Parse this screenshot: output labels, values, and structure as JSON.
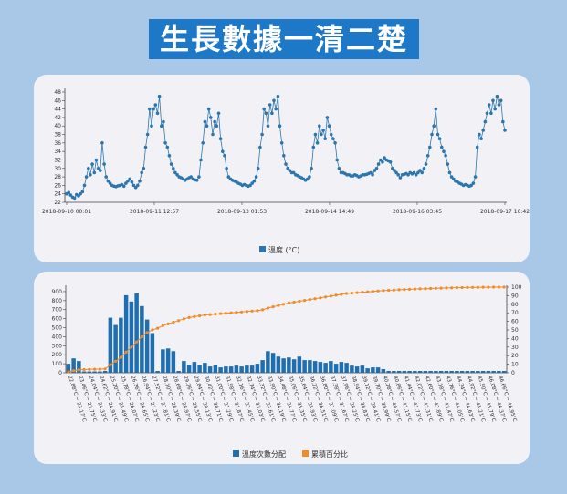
{
  "title": "生長數據一清二楚",
  "colors": {
    "bar": "#1f6eb0",
    "line": "#f08c28",
    "temp": "#2d76ad",
    "background": "#a9c8e8",
    "panel": "#f1f1f6"
  },
  "chart_data": [
    {
      "type": "line",
      "x_ticks": [
        "2018-09-10 00:01",
        "2018-09-11 12:57",
        "2018-09-13 01:53",
        "2018-09-14 14:49",
        "2018-09-16 03:45",
        "2018-09-17 16:42"
      ],
      "y_ticks": [
        22,
        24,
        26,
        28,
        30,
        32,
        34,
        36,
        38,
        40,
        42,
        44,
        46,
        48
      ],
      "ylim": [
        22,
        48
      ],
      "legend": "溫度 (°C)",
      "legend_position": "bottom",
      "values": [
        24,
        24.3,
        23.7,
        23.2,
        23,
        23.8,
        23.5,
        24,
        24.5,
        26,
        28,
        30,
        28.5,
        31,
        29,
        32,
        30,
        29.5,
        36,
        31,
        28,
        27,
        26.5,
        26,
        25.8,
        25.7,
        25.9,
        26,
        26.2,
        25.8,
        26.5,
        27,
        27.5,
        26.8,
        26,
        25.5,
        26,
        27,
        29,
        30,
        35,
        38,
        44,
        40,
        44,
        45,
        43,
        47,
        40,
        41,
        36,
        35,
        33,
        31,
        30,
        29,
        28.5,
        28,
        27.8,
        27.5,
        27.2,
        27.5,
        27.8,
        28,
        27.5,
        27.3,
        27.2,
        28,
        32,
        36,
        41,
        40,
        44,
        42,
        38,
        41,
        40,
        43,
        37,
        34,
        33,
        30,
        28,
        27.5,
        27.2,
        27,
        26.8,
        26.5,
        26.3,
        26,
        26.2,
        26,
        25.8,
        26,
        26.5,
        27,
        28,
        30,
        35,
        38,
        44,
        43,
        40,
        45,
        43,
        46,
        44,
        47,
        40,
        36,
        33,
        31,
        30,
        29.5,
        29,
        29,
        28.5,
        28.3,
        28,
        27.8,
        27.5,
        27.2,
        27.5,
        28,
        30,
        35,
        38,
        36,
        40,
        38,
        39,
        37,
        42,
        40,
        38,
        37,
        36,
        32,
        30,
        29,
        29,
        28.8,
        28.5,
        28.5,
        28.2,
        28.2,
        28.5,
        28.3,
        28,
        28.2,
        28.5,
        28.5,
        28.6,
        28.8,
        29,
        28.5,
        29.5,
        30,
        31,
        32,
        31.5,
        32.5,
        32,
        31.8,
        31.5,
        30,
        29.5,
        29,
        28.5,
        27.8,
        28.5,
        28.6,
        28.8,
        28.5,
        29,
        28.7,
        29,
        28.5,
        29,
        29.5,
        29,
        30,
        31,
        33,
        35,
        38,
        40,
        44,
        38,
        37,
        35,
        34,
        33,
        31,
        29,
        28,
        27.5,
        27,
        26.8,
        26.5,
        26.3,
        26,
        26.2,
        26,
        25.8,
        26,
        26.5,
        28,
        35,
        38,
        37,
        39,
        41,
        43,
        45,
        43,
        46,
        44,
        47,
        45,
        46,
        41,
        39
      ]
    },
    {
      "type": "bar",
      "categories": [
        "22.88°C ~ 23.17°C",
        "23.17°C ~ 23.46°C",
        "23.46°C ~ 23.75°C",
        "23.75°C ~ 24.04°C",
        "24.04°C ~ 24.33°C",
        "24.33°C ~ 24.62°C",
        "24.62°C ~ 24.91°C",
        "24.91°C ~ 25.20°C",
        "25.20°C ~ 25.49°C",
        "25.49°C ~ 25.78°C",
        "25.78°C ~ 26.07°C",
        "26.07°C ~ 26.36°C",
        "26.36°C ~ 26.65°C",
        "26.65°C ~ 26.94°C",
        "26.94°C ~ 27.23°C",
        "27.23°C ~ 27.52°C",
        "27.52°C ~ 27.81°C",
        "27.81°C ~ 28.10°C",
        "28.10°C ~ 28.39°C",
        "28.39°C ~ 28.68°C",
        "28.68°C ~ 28.97°C",
        "28.97°C ~ 29.26°C",
        "29.26°C ~ 29.55°C",
        "29.55°C ~ 29.84°C",
        "29.84°C ~ 30.13°C",
        "30.13°C ~ 30.42°C",
        "30.42°C ~ 30.71°C",
        "30.71°C ~ 31.00°C",
        "31.00°C ~ 31.29°C",
        "31.29°C ~ 31.58°C",
        "31.58°C ~ 31.87°C",
        "31.87°C ~ 32.16°C",
        "32.16°C ~ 32.45°C",
        "32.45°C ~ 32.74°C",
        "32.74°C ~ 33.03°C",
        "33.03°C ~ 33.32°C",
        "33.32°C ~ 33.61°C",
        "33.61°C ~ 33.90°C",
        "33.90°C ~ 34.19°C",
        "34.19°C ~ 34.48°C",
        "34.48°C ~ 34.77°C",
        "34.77°C ~ 35.06°C",
        "35.06°C ~ 35.35°C",
        "35.35°C ~ 35.64°C",
        "35.64°C ~ 35.93°C",
        "35.93°C ~ 36.22°C",
        "36.22°C ~ 36.51°C",
        "36.51°C ~ 36.80°C",
        "36.80°C ~ 37.09°C",
        "37.09°C ~ 37.38°C",
        "37.38°C ~ 37.67°C",
        "37.67°C ~ 37.96°C",
        "37.96°C ~ 38.25°C",
        "38.25°C ~ 38.54°C",
        "38.54°C ~ 38.83°C",
        "38.83°C ~ 39.12°C",
        "39.12°C ~ 39.41°C",
        "39.41°C ~ 39.70°C",
        "39.70°C ~ 39.99°C",
        "39.99°C ~ 40.28°C",
        "40.28°C ~ 40.57°C",
        "40.57°C ~ 40.86°C",
        "40.86°C ~ 41.15°C",
        "41.15°C ~ 41.44°C",
        "41.44°C ~ 41.73°C",
        "41.73°C ~ 42.02°C",
        "42.02°C ~ 42.31°C",
        "42.31°C ~ 42.60°C",
        "42.60°C ~ 42.89°C",
        "42.89°C ~ 43.18°C",
        "43.18°C ~ 43.47°C",
        "43.47°C ~ 43.76°C",
        "43.76°C ~ 44.05°C",
        "44.05°C ~ 44.34°C",
        "44.34°C ~ 44.63°C",
        "44.63°C ~ 44.92°C",
        "44.92°C ~ 45.21°C",
        "45.21°C ~ 45.50°C",
        "45.50°C ~ 45.79°C",
        "45.79°C ~ 46.08°C",
        "46.08°C ~ 46.37°C",
        "46.37°C ~ 46.66°C",
        "46.66°C ~ 46.95°C",
        "46.95°C ~ 47.24°C"
      ],
      "label_indices": [
        0,
        2,
        4,
        6,
        8,
        10,
        12,
        14,
        16,
        18,
        20,
        22,
        24,
        26,
        28,
        30,
        32,
        34,
        36,
        38,
        40,
        42,
        44,
        46,
        48,
        50,
        52,
        54,
        56,
        58,
        60,
        62,
        64,
        66,
        68,
        70,
        72,
        74,
        76,
        78,
        80,
        82
      ],
      "visible_labels": [
        "22.88°C ~ 23.17°C",
        "23.46°C ~ 23.75°C",
        "24.04°C ~ 24.33°C",
        "24.62°C ~ 24.91°C",
        "25.20°C ~ 25.49°C",
        "25.78°C ~ 26.07°C",
        "26.36°C ~ 26.65°C",
        "26.94°C ~ 27.23°C",
        "27.52°C ~ 27.81°C",
        "28.10°C ~ 28.39°C",
        "28.68°C ~ 28.97°C",
        "29.26°C ~ 29.55°C",
        "29.84°C ~ 30.13°C",
        "30.42°C ~ 30.71°C",
        "31.00°C ~ 31.29°C",
        "31.58°C ~ 31.87°C",
        "32.16°C ~ 32.45°C",
        "32.74°C ~ 33.03°C",
        "33.32°C ~ 33.61°C",
        "33.90°C ~ 34.19°C",
        "34.48°C ~ 34.77°C",
        "35.06°C ~ 35.35°C",
        "35.64°C ~ 35.93°C",
        "36.22°C ~ 36.51°C",
        "36.80°C ~ 37.09°C",
        "37.38°C ~ 37.67°C",
        "37.96°C ~ 38.25°C",
        "38.54°C ~ 38.83°C",
        "39.12°C ~ 39.41°C",
        "39.70°C ~ 39.99°C",
        "40.28°C ~ 40.57°C",
        "40.86°C ~ 41.15°C",
        "41.44°C ~ 41.73°C",
        "42.02°C ~ 42.31°C",
        "42.60°C ~ 42.89°C",
        "43.18°C ~ 43.47°C",
        "43.76°C ~ 44.05°C",
        "44.34°C ~ 44.63°C",
        "44.92°C ~ 45.21°C",
        "45.50°C ~ 45.79°C",
        "46.08°C ~ 46.37°C",
        "46.66°C ~ 46.95°C"
      ],
      "series": [
        {
          "name": "溫度次數分配",
          "values": [
            100,
            160,
            130,
            15,
            15,
            15,
            15,
            20,
            610,
            530,
            610,
            860,
            790,
            880,
            740,
            590,
            440,
            20,
            260,
            270,
            240,
            20,
            130,
            90,
            120,
            90,
            110,
            70,
            90,
            60,
            70,
            70,
            80,
            70,
            80,
            80,
            100,
            140,
            240,
            220,
            180,
            160,
            170,
            150,
            180,
            140,
            140,
            130,
            120,
            110,
            130,
            100,
            120,
            110,
            80,
            70,
            80,
            50,
            60,
            60,
            40,
            20,
            20,
            20,
            20,
            20,
            20,
            20,
            20,
            20,
            20,
            20,
            20,
            20,
            20,
            20,
            20,
            20,
            20,
            20,
            20,
            20,
            20,
            20
          ]
        },
        {
          "name": "累積百分比",
          "values": [
            1,
            2.5,
            3.5,
            3.7,
            3.9,
            4.1,
            4.3,
            4.5,
            9.5,
            13.5,
            18,
            24,
            30,
            36,
            42,
            47,
            50,
            52,
            55,
            57,
            59,
            61,
            63,
            64.5,
            65.5,
            66.5,
            67.5,
            68,
            68.5,
            69,
            69.5,
            70,
            70.5,
            71,
            71.5,
            72,
            72.5,
            73.5,
            75.5,
            77,
            78.5,
            80,
            81.5,
            82.5,
            83.5,
            84.5,
            85.5,
            86.5,
            87.5,
            88.5,
            89.5,
            90.5,
            91.5,
            92.5,
            93,
            93.5,
            94,
            94.5,
            95,
            95.5,
            96,
            96.3,
            96.6,
            96.9,
            97.2,
            97.5,
            97.8,
            98,
            98.2,
            98.4,
            98.6,
            98.8,
            99,
            99.2,
            99.4,
            99.5,
            99.6,
            99.7,
            99.8,
            99.85,
            99.9,
            99.95,
            100,
            100
          ]
        }
      ],
      "y_left_ticks": [
        0,
        100,
        200,
        300,
        400,
        500,
        600,
        700,
        800,
        900
      ],
      "y_right_ticks": [
        0,
        10,
        20,
        30,
        40,
        50,
        60,
        70,
        80,
        90,
        100
      ],
      "ylim_left": [
        0,
        950
      ],
      "ylim_right": [
        0,
        100
      ],
      "legend_position": "bottom"
    }
  ]
}
